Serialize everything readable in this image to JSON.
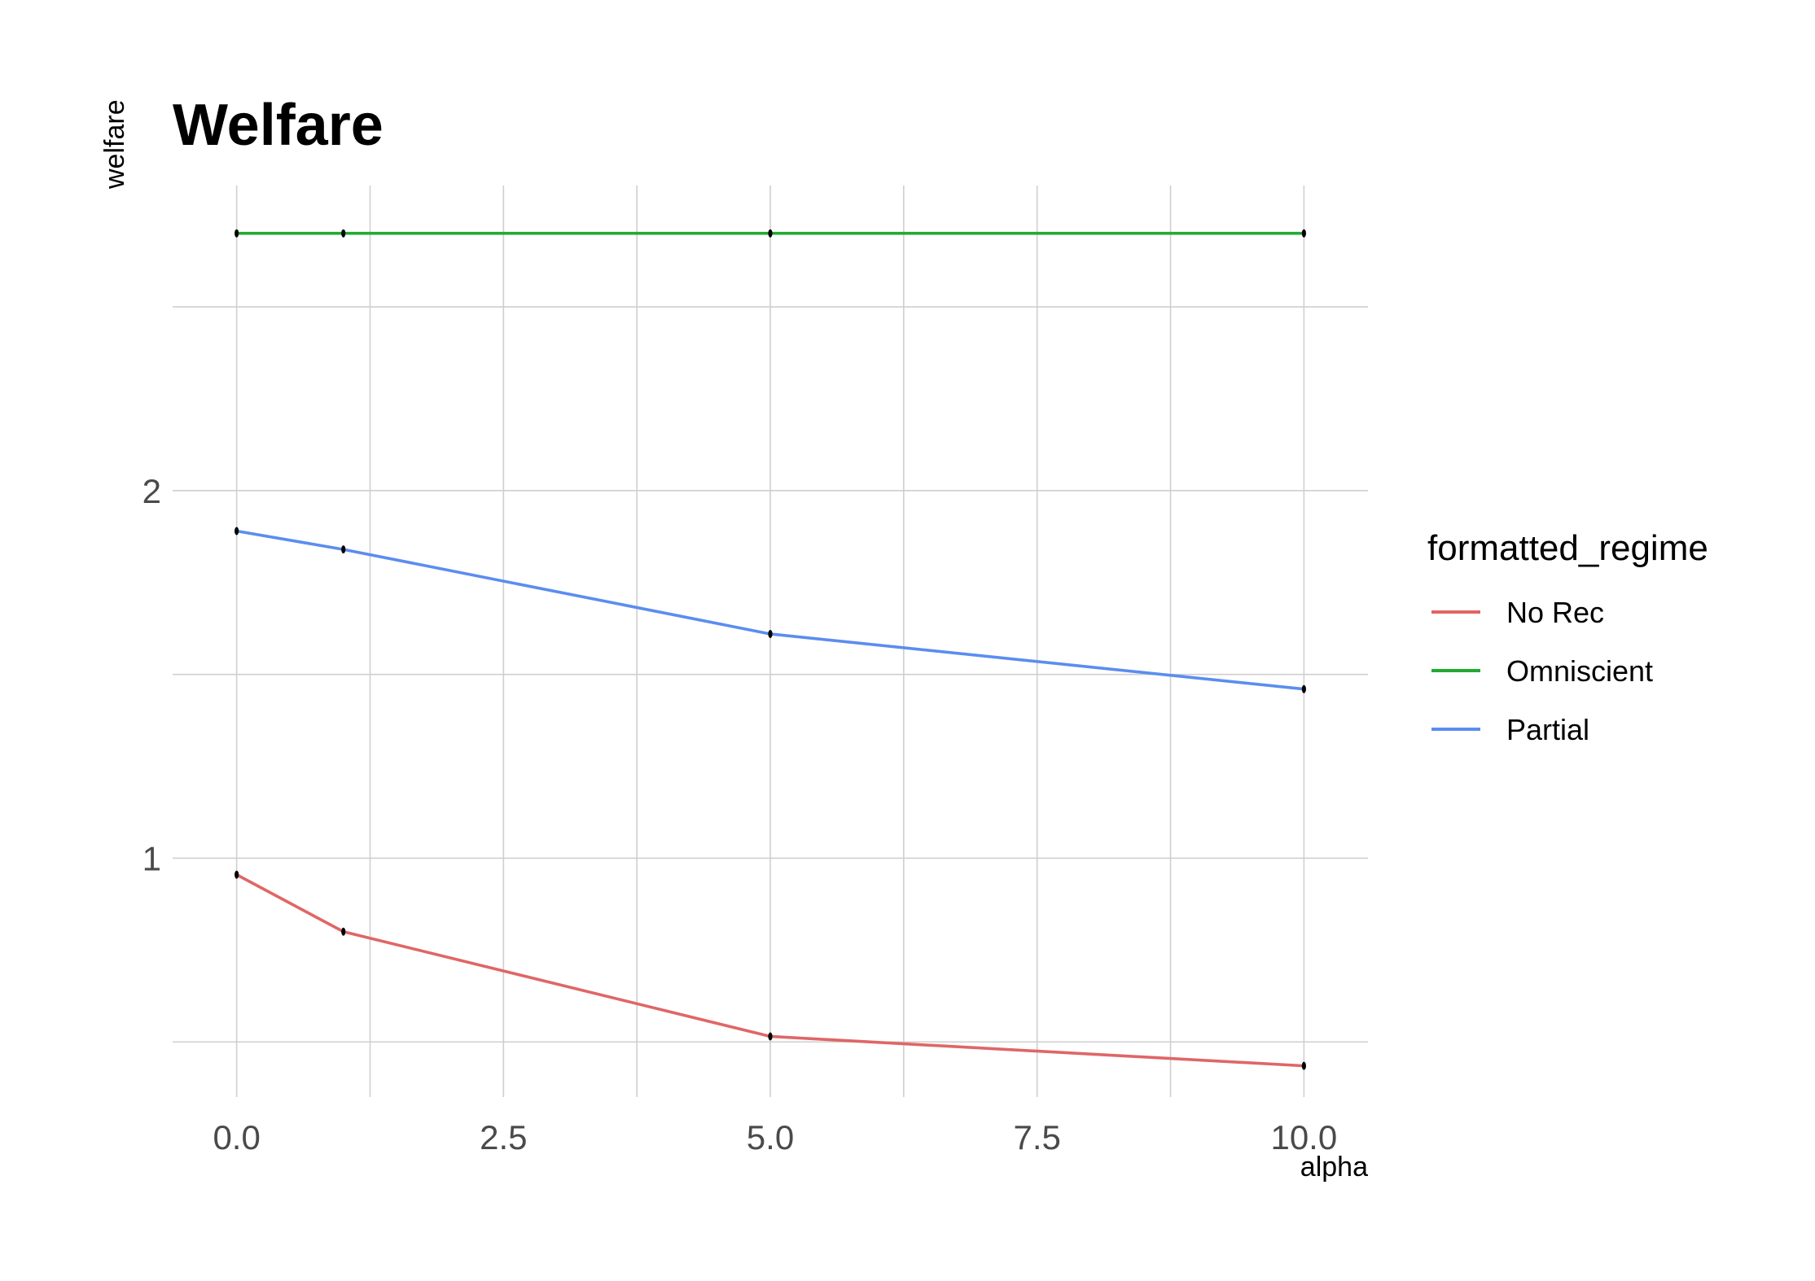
{
  "chart_data": {
    "type": "line",
    "title": "Welfare",
    "xlabel": "alpha",
    "ylabel": "welfare",
    "xlim": [
      -0.6,
      10.6
    ],
    "ylim": [
      0.35,
      2.83
    ],
    "x_ticks": [
      0.0,
      2.5,
      5.0,
      7.5,
      10.0
    ],
    "x_tick_labels": [
      "0.0",
      "2.5",
      "5.0",
      "7.5",
      "10.0"
    ],
    "y_ticks": [
      1,
      2
    ],
    "y_tick_labels": [
      "1",
      "2"
    ],
    "grid": true,
    "legend": {
      "title": "formatted_regime",
      "position": "right"
    },
    "series": [
      {
        "name": "No Rec",
        "color": "#e06666",
        "x": [
          0,
          1,
          5,
          10
        ],
        "y": [
          0.955,
          0.8,
          0.515,
          0.435
        ]
      },
      {
        "name": "Omniscient",
        "color": "#22aa33",
        "x": [
          0,
          1,
          5,
          10
        ],
        "y": [
          2.7,
          2.7,
          2.7,
          2.7
        ]
      },
      {
        "name": "Partial",
        "color": "#5b8def",
        "x": [
          0,
          1,
          5,
          10
        ],
        "y": [
          1.89,
          1.84,
          1.61,
          1.46
        ]
      }
    ]
  }
}
